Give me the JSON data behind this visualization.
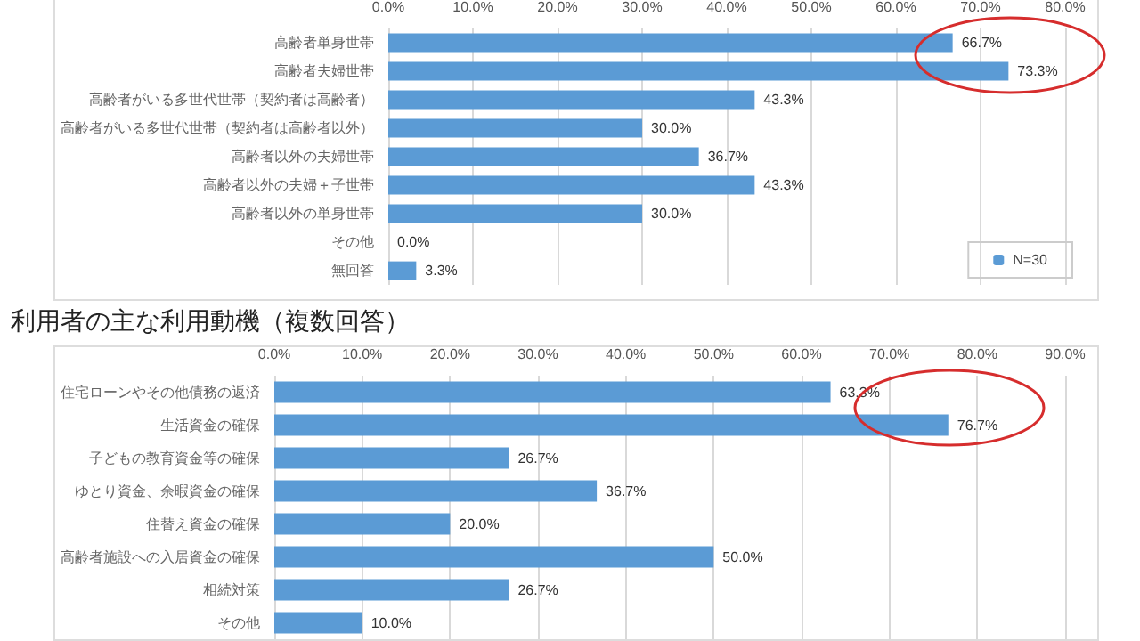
{
  "chart_data": [
    {
      "type": "bar",
      "orientation": "horizontal",
      "categories": [
        "高齢者単身世帯",
        "高齢者夫婦世帯",
        "高齢者がいる多世代世帯（契約者は高齢者）",
        "高齢者がいる多世代世帯（契約者は高齢者以外）",
        "高齢者以外の夫婦世帯",
        "高齢者以外の夫婦＋子世帯",
        "高齢者以外の単身世帯",
        "その他",
        "無回答"
      ],
      "series": [
        {
          "name": "N=30",
          "color": "#5b9bd5",
          "values": [
            66.7,
            73.3,
            43.3,
            30.0,
            36.7,
            43.3,
            30.0,
            0.0,
            3.3
          ],
          "value_labels": [
            "66.7%",
            "73.3%",
            "43.3%",
            "30.0%",
            "36.7%",
            "43.3%",
            "30.0%",
            "0.0%",
            "3.3%"
          ]
        }
      ],
      "xlim": [
        0,
        80
      ],
      "xticks": [
        {
          "value": 0,
          "label": "0.0%"
        },
        {
          "value": 10,
          "label": "10.0%"
        },
        {
          "value": 20,
          "label": "20.0%"
        },
        {
          "value": 30,
          "label": "30.0%"
        },
        {
          "value": 40,
          "label": "40.0%"
        },
        {
          "value": 50,
          "label": "50.0%"
        },
        {
          "value": 60,
          "label": "60.0%"
        },
        {
          "value": 70,
          "label": "70.0%"
        },
        {
          "value": 80,
          "label": "80.0%"
        }
      ],
      "grid": "x",
      "legend": "bottom right"
    },
    {
      "type": "bar",
      "orientation": "horizontal",
      "title": "利用者の主な利用動機（複数回答）",
      "categories": [
        "住宅ローンやその他債務の返済",
        "生活資金の確保",
        "子どもの教育資金等の確保",
        "ゆとり資金、余暇資金の確保",
        "住替え資金の確保",
        "高齢者施設への入居資金の確保",
        "相続対策",
        "その他"
      ],
      "series": [
        {
          "color": "#5b9bd5",
          "values": [
            63.3,
            76.7,
            26.7,
            36.7,
            20.0,
            50.0,
            26.7,
            10.0
          ],
          "value_labels": [
            "63.3%",
            "76.7%",
            "26.7%",
            "36.7%",
            "20.0%",
            "50.0%",
            "26.7%",
            "10.0%"
          ]
        }
      ],
      "xlim": [
        0,
        90
      ],
      "xticks": [
        {
          "value": 0,
          "label": "0.0%"
        },
        {
          "value": 10,
          "label": "10.0%"
        },
        {
          "value": 20,
          "label": "20.0%"
        },
        {
          "value": 30,
          "label": "30.0%"
        },
        {
          "value": 40,
          "label": "40.0%"
        },
        {
          "value": 50,
          "label": "50.0%"
        },
        {
          "value": 60,
          "label": "60.0%"
        },
        {
          "value": 70,
          "label": "70.0%"
        },
        {
          "value": 80,
          "label": "80.0%"
        },
        {
          "value": 90,
          "label": "90.0%"
        }
      ],
      "grid": "x"
    }
  ]
}
